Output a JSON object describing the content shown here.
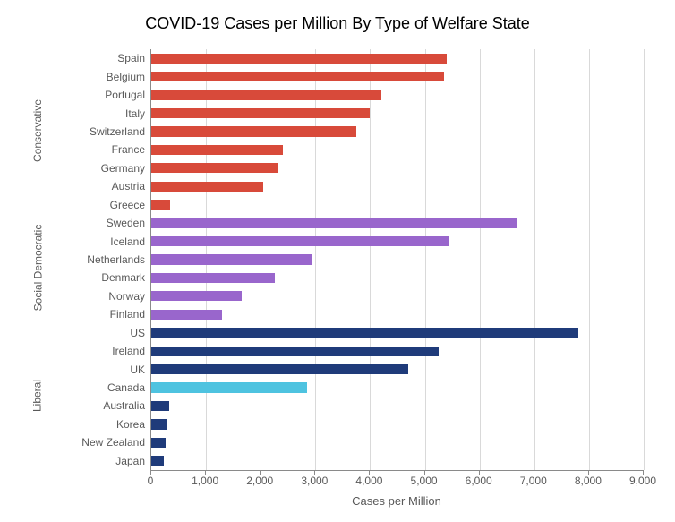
{
  "chart": {
    "type": "bar",
    "title": "COVID-19 Cases per Million By Type of Welfare State",
    "title_fontsize": 18,
    "title_color": "#000000",
    "background_color": "#ffffff",
    "plot_background": "#ffffff",
    "grid_color": "#d9d9d9",
    "axis_line_color": "#8a8a8a",
    "label_color": "#595959",
    "label_fontsize": 12,
    "axis_title_fontsize": 13,
    "x_axis_title": "Cases per Million",
    "xlim": [
      0,
      9000
    ],
    "xtick_step": 1000,
    "xticks": [
      0,
      1000,
      2000,
      3000,
      4000,
      5000,
      6000,
      7000,
      8000,
      9000
    ],
    "xtick_labels": [
      "0",
      "1,000",
      "2,000",
      "3,000",
      "4,000",
      "5,000",
      "6,000",
      "7,000",
      "8,000",
      "9,000"
    ],
    "bar_thickness_ratio": 0.55,
    "groups": [
      {
        "name": "Conservative",
        "color": "#d84a3a",
        "countries": [
          {
            "label": "Spain",
            "value": 5400
          },
          {
            "label": "Belgium",
            "value": 5350
          },
          {
            "label": "Portugal",
            "value": 4200
          },
          {
            "label": "Italy",
            "value": 4000
          },
          {
            "label": "Switzerland",
            "value": 3750
          },
          {
            "label": "France",
            "value": 2400
          },
          {
            "label": "Germany",
            "value": 2300
          },
          {
            "label": "Austria",
            "value": 2050
          },
          {
            "label": "Greece",
            "value": 350
          }
        ]
      },
      {
        "name": "Social Democratic",
        "color": "#9966cc",
        "countries": [
          {
            "label": "Sweden",
            "value": 6700
          },
          {
            "label": "Iceland",
            "value": 5450
          },
          {
            "label": "Netherlands",
            "value": 2950
          },
          {
            "label": "Denmark",
            "value": 2250
          },
          {
            "label": "Norway",
            "value": 1650
          },
          {
            "label": "Finland",
            "value": 1300
          }
        ]
      },
      {
        "name": "Liberal",
        "color": "#1f3b7a",
        "countries": [
          {
            "label": "US",
            "value": 7800
          },
          {
            "label": "Ireland",
            "value": 5250
          },
          {
            "label": "UK",
            "value": 4700
          },
          {
            "label": "Canada",
            "value": 2850,
            "color": "#4ec3e0"
          },
          {
            "label": "Australia",
            "value": 330
          },
          {
            "label": "Korea",
            "value": 280
          },
          {
            "label": "New Zealand",
            "value": 260
          },
          {
            "label": "Japan",
            "value": 230
          }
        ]
      }
    ]
  }
}
